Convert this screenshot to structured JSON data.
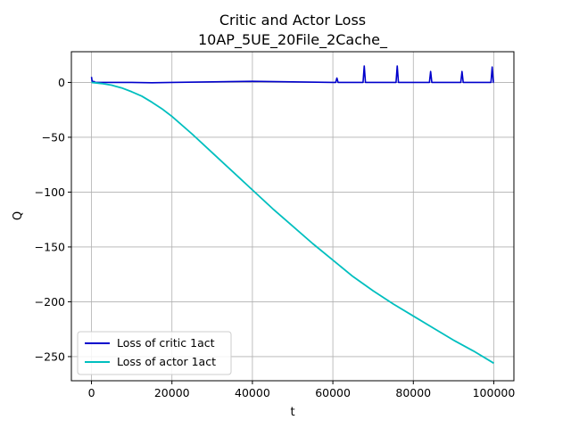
{
  "chart_data": {
    "type": "line",
    "title": "Critic and Actor Loss",
    "subtitle": "10AP_5UE_20File_2Cache_",
    "xlabel": "t",
    "ylabel": "Q",
    "xlim": [
      -5000,
      105000
    ],
    "ylim": [
      -272,
      28
    ],
    "xticks": [
      0,
      20000,
      40000,
      60000,
      80000,
      100000
    ],
    "yticks": [
      0,
      -50,
      -100,
      -150,
      -200,
      -250
    ],
    "xtick_labels": [
      "0",
      "20000",
      "40000",
      "60000",
      "80000",
      "100000"
    ],
    "ytick_labels": [
      "0",
      "−50",
      "−100",
      "−150",
      "−200",
      "−250"
    ],
    "grid": true,
    "legend_position": "lower-left",
    "series": [
      {
        "name": "Loss of critic 1act",
        "color": "#0000cc",
        "x": [
          0,
          200,
          500,
          1000,
          5000,
          10000,
          15000,
          20000,
          30000,
          40000,
          50000,
          60000,
          60700,
          61000,
          61300,
          67500,
          67800,
          68100,
          75700,
          76000,
          76300,
          84000,
          84300,
          84600,
          91800,
          92100,
          92400,
          99300,
          99600,
          99900,
          100000
        ],
        "values": [
          5,
          0,
          1,
          0,
          0,
          0,
          -0.3,
          0,
          0.5,
          1,
          0.5,
          0,
          0,
          4,
          0,
          0,
          15,
          0,
          0,
          15,
          0,
          0,
          10,
          0,
          0,
          10,
          0,
          0,
          14,
          0,
          0
        ]
      },
      {
        "name": "Loss of actor 1act",
        "color": "#00bfbf",
        "x": [
          0,
          2500,
          5000,
          7500,
          10000,
          12500,
          15000,
          17500,
          20000,
          25000,
          30000,
          35000,
          40000,
          45000,
          50000,
          55000,
          60000,
          65000,
          70000,
          75000,
          80000,
          85000,
          90000,
          95000,
          100000
        ],
        "values": [
          0,
          -1,
          -2.5,
          -5,
          -8.5,
          -12.5,
          -18,
          -24,
          -31,
          -47,
          -64,
          -81,
          -98,
          -115,
          -131,
          -147,
          -162,
          -177,
          -190,
          -202,
          -213,
          -224,
          -235,
          -245,
          -256
        ]
      }
    ]
  }
}
